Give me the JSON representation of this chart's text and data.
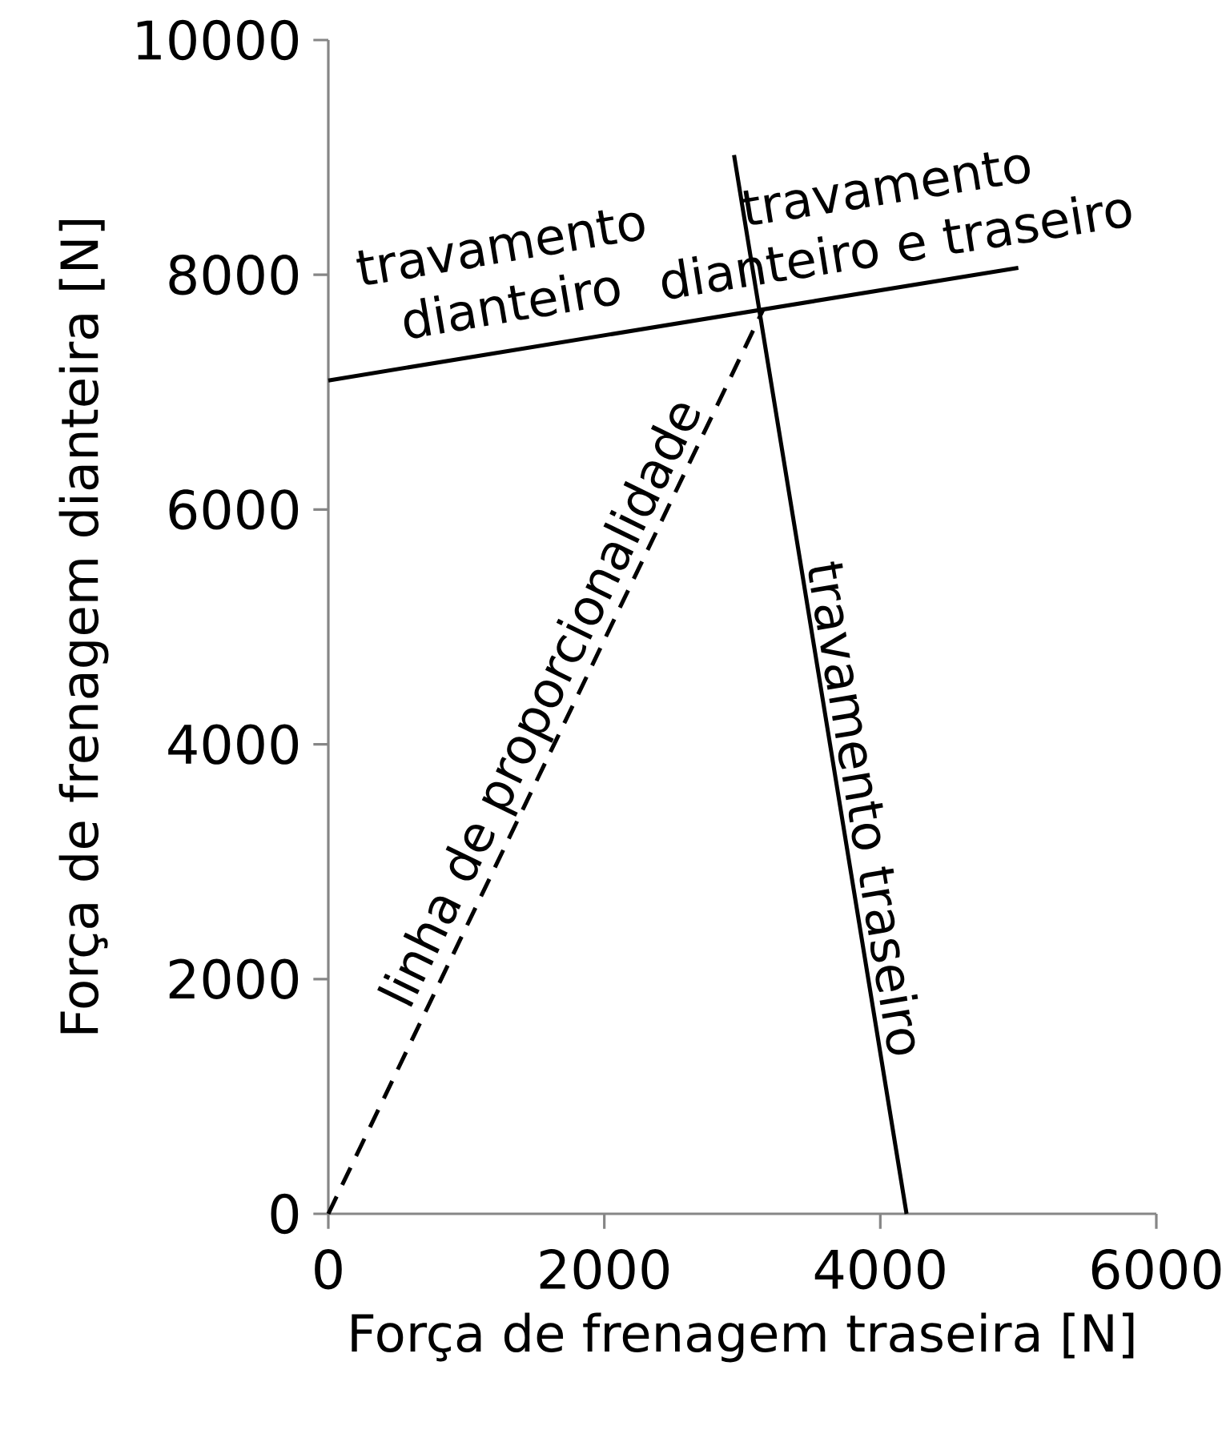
{
  "chart_data": {
    "type": "line",
    "xlabel": "Força de frenagem traseira [N]",
    "ylabel": "Força de frenagem dianteira [N]",
    "xlim": [
      0,
      6000
    ],
    "ylim": [
      0,
      10000
    ],
    "xticks": [
      0,
      2000,
      4000,
      6000
    ],
    "yticks": [
      0,
      2000,
      4000,
      6000,
      8000,
      10000
    ],
    "grid": false,
    "marker": "none",
    "series": [
      {
        "color": "#000000",
        "x": [
          0,
          5000
        ],
        "values": [
          7100,
          8060
        ],
        "line_style": "solid"
      },
      {
        "color": "#000000",
        "x": [
          2940,
          4190
        ],
        "values": [
          9020,
          0
        ],
        "line_style": "solid"
      },
      {
        "color": "#000000",
        "x": [
          0,
          3150
        ],
        "values": [
          0,
          7700
        ],
        "line_style": "dashed"
      }
    ],
    "annotations": [
      "travamento dianteiro",
      "travamento dianteiro e traseiro",
      "linha de proporcionalidade",
      "travamento traseiro"
    ]
  }
}
